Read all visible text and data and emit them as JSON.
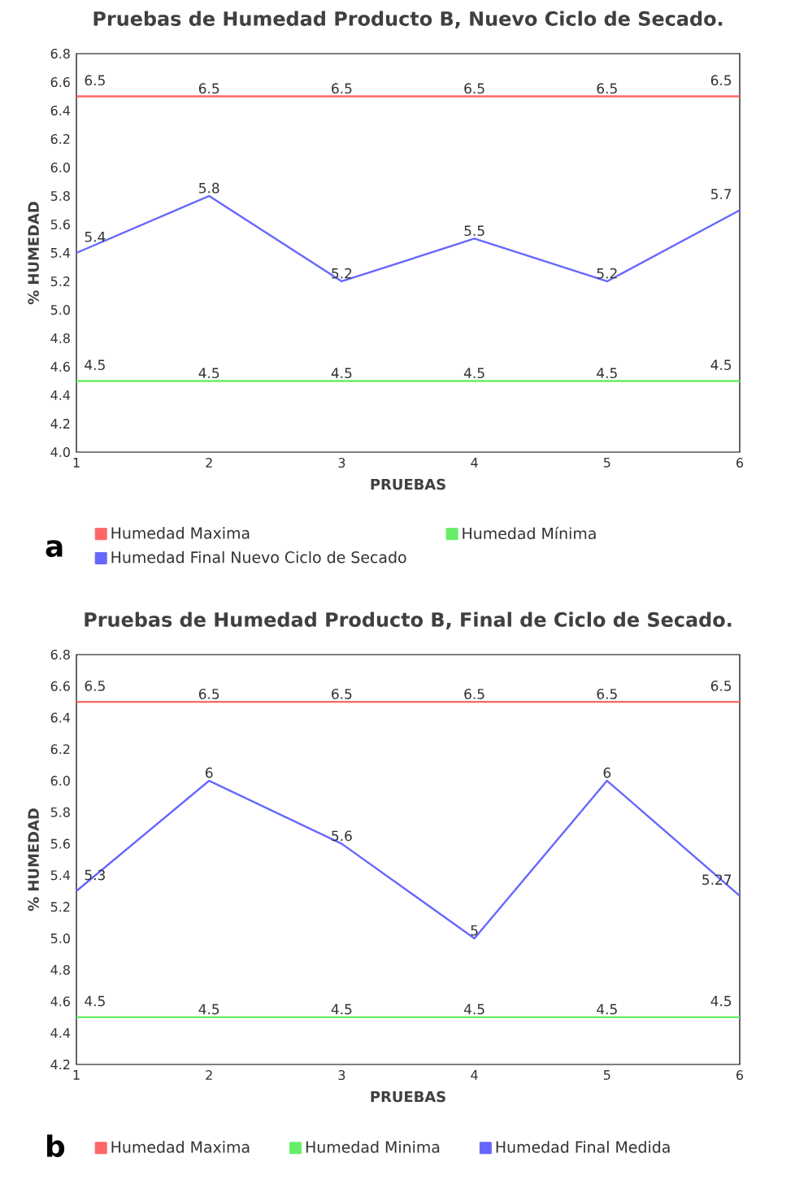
{
  "chart_data": [
    {
      "type": "line",
      "title": "Pruebas de Humedad Producto B, Nuevo Ciclo de Secado.",
      "xlabel": "PRUEBAS",
      "ylabel": "% HUMEDAD",
      "x": [
        1,
        2,
        3,
        4,
        5,
        6
      ],
      "xlim": [
        1,
        6
      ],
      "xticks": [
        1,
        2,
        3,
        4,
        5,
        6
      ],
      "ylim": [
        4.0,
        6.8
      ],
      "yticks": [
        {
          "value": 4.0,
          "label": "4.0"
        },
        {
          "value": 4.2,
          "label": "4.2"
        },
        {
          "value": 4.4,
          "label": "4.4"
        },
        {
          "value": 4.6,
          "label": "4.6"
        },
        {
          "value": 4.8,
          "label": "4.8"
        },
        {
          "value": 5.0,
          "label": "5.0"
        },
        {
          "value": 5.2,
          "label": "5.2"
        },
        {
          "value": 5.4,
          "label": "5.4"
        },
        {
          "value": 5.6,
          "label": "5.6"
        },
        {
          "value": 5.8,
          "label": "5.8"
        },
        {
          "value": 6.0,
          "label": "6.0"
        },
        {
          "value": 6.2,
          "label": "6.2"
        },
        {
          "value": 6.4,
          "label": "6.4"
        },
        {
          "value": 6.6,
          "label": "6.6"
        },
        {
          "value": 6.8,
          "label": "6.8"
        }
      ],
      "series": [
        {
          "name": "Humedad Maxima",
          "color": "#ff6666",
          "values": [
            6.5,
            6.5,
            6.5,
            6.5,
            6.5,
            6.5
          ]
        },
        {
          "name": "Humedad Mínima",
          "color": "#66ee66",
          "values": [
            4.5,
            4.5,
            4.5,
            4.5,
            4.5,
            4.5
          ]
        },
        {
          "name": "Humedad Final Nuevo Ciclo de Secado",
          "color": "#6666ff",
          "values": [
            5.4,
            5.8,
            5.2,
            5.5,
            5.2,
            5.7
          ]
        }
      ],
      "data_labels": true,
      "legend": "bottom",
      "marker": "none",
      "line_style": "solid",
      "annotations": [
        "a"
      ]
    },
    {
      "type": "line",
      "title": "Pruebas de Humedad Producto B, Final de Ciclo de Secado.",
      "xlabel": "PRUEBAS",
      "ylabel": "% HUMEDAD",
      "x": [
        1,
        2,
        3,
        4,
        5,
        6
      ],
      "xlim": [
        1,
        6
      ],
      "xticks": [
        1,
        2,
        3,
        4,
        5,
        6
      ],
      "ylim": [
        4.2,
        6.8
      ],
      "yticks": [
        {
          "value": 4.2,
          "label": "4.2"
        },
        {
          "value": 4.4,
          "label": "4.4"
        },
        {
          "value": 4.6,
          "label": "4.6"
        },
        {
          "value": 4.8,
          "label": "4.8"
        },
        {
          "value": 5.0,
          "label": "5.0"
        },
        {
          "value": 5.2,
          "label": "5.2"
        },
        {
          "value": 5.4,
          "label": "5.4"
        },
        {
          "value": 5.6,
          "label": "5.6"
        },
        {
          "value": 5.8,
          "label": "5.8"
        },
        {
          "value": 6.0,
          "label": "6.0"
        },
        {
          "value": 6.2,
          "label": "6.2"
        },
        {
          "value": 6.4,
          "label": "6.4"
        },
        {
          "value": 6.6,
          "label": "6.6"
        },
        {
          "value": 6.8,
          "label": "6.8"
        }
      ],
      "series": [
        {
          "name": "Humedad Maxima",
          "color": "#ff6666",
          "values": [
            6.5,
            6.5,
            6.5,
            6.5,
            6.5,
            6.5
          ]
        },
        {
          "name": "Humedad Minima",
          "color": "#66ee66",
          "values": [
            4.5,
            4.5,
            4.5,
            4.5,
            4.5,
            4.5
          ]
        },
        {
          "name": "Humedad Final Medida",
          "color": "#6666ff",
          "values": [
            5.3,
            6,
            5.6,
            5,
            6,
            5.27
          ]
        }
      ],
      "data_labels": true,
      "legend": "bottom",
      "marker": "none",
      "line_style": "solid",
      "annotations": [
        "b"
      ]
    }
  ]
}
